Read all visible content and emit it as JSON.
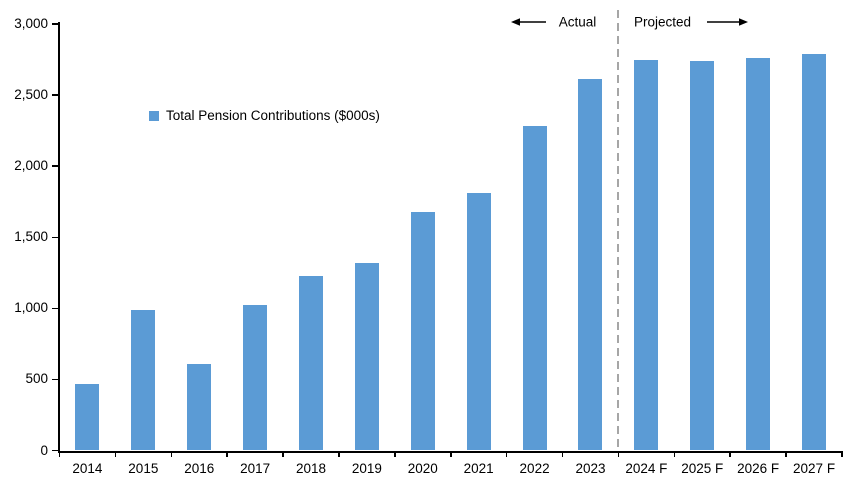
{
  "chart_data": {
    "type": "bar",
    "title": "",
    "legend_label": "Total Pension Contributions ($000s)",
    "categories": [
      "2014",
      "2015",
      "2016",
      "2017",
      "2018",
      "2019",
      "2020",
      "2021",
      "2022",
      "2023",
      "2024 F",
      "2025 F",
      "2026 F",
      "2027 F"
    ],
    "values": [
      470,
      990,
      610,
      1020,
      1230,
      1320,
      1680,
      1810,
      2280,
      2610,
      2750,
      2740,
      2760,
      2790
    ],
    "ylim": [
      0,
      3000
    ],
    "y_tick_interval": 500,
    "y_tick_labels": [
      "0",
      "500",
      "1,000",
      "1,500",
      "2,000",
      "2,500",
      "3,000"
    ],
    "grid": false,
    "legend_position": "inside-upper-left",
    "annotations": {
      "actual_label": "Actual",
      "projected_label": "Projected",
      "divider_before_category": "2024 F"
    },
    "colors": {
      "bar": "#5B9BD5",
      "axis": "#000000",
      "divider": "#A6A6A6",
      "text": "#000000"
    }
  }
}
